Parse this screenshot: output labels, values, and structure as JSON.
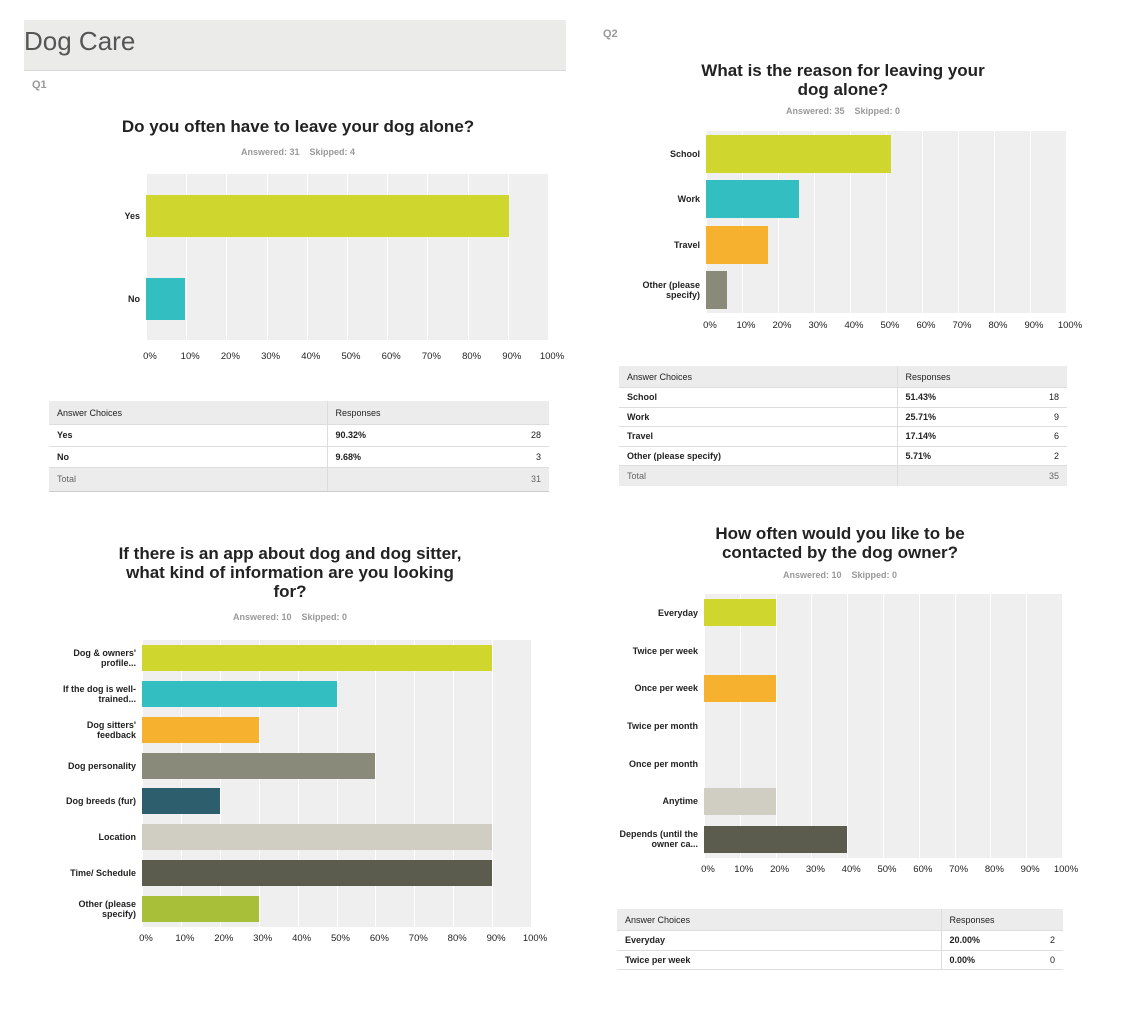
{
  "header": {
    "title": "Dog Care"
  },
  "chart_data": [
    {
      "type": "bar",
      "orientation": "horizontal",
      "label": "Q1",
      "title": "Do you often have to leave your dog alone?",
      "answered": "Answered: 31",
      "skipped": "Skipped: 4",
      "categories": [
        "Yes",
        "No"
      ],
      "values": [
        90.32,
        9.68
      ],
      "colors": [
        "#cfd62d",
        "#33bec1"
      ],
      "xlim": [
        0,
        100
      ],
      "xticks": [
        {
          "value": 0,
          "label": "0%"
        },
        {
          "value": 10,
          "label": "10%"
        },
        {
          "value": 20,
          "label": "20%"
        },
        {
          "value": 30,
          "label": "30%"
        },
        {
          "value": 40,
          "label": "40%"
        },
        {
          "value": 50,
          "label": "50%"
        },
        {
          "value": 60,
          "label": "60%"
        },
        {
          "value": 70,
          "label": "70%"
        },
        {
          "value": 80,
          "label": "80%"
        },
        {
          "value": 90,
          "label": "90%"
        },
        {
          "value": 100,
          "label": "100%"
        }
      ],
      "grid": true
    },
    {
      "type": "bar",
      "orientation": "horizontal",
      "label": "Q2",
      "title": "What is the reason for leaving your dog alone?",
      "answered": "Answered: 35",
      "skipped": "Skipped: 0",
      "categories": [
        "School",
        "Work",
        "Travel",
        "Other (please specify)"
      ],
      "values": [
        51.43,
        25.71,
        17.14,
        5.71
      ],
      "colors": [
        "#cfd62d",
        "#33bec1",
        "#f6b12f",
        "#8a8a7b"
      ],
      "xlim": [
        0,
        100
      ],
      "xticks": [
        {
          "value": 0,
          "label": "0%"
        },
        {
          "value": 10,
          "label": "10%"
        },
        {
          "value": 20,
          "label": "20%"
        },
        {
          "value": 30,
          "label": "30%"
        },
        {
          "value": 40,
          "label": "40%"
        },
        {
          "value": 50,
          "label": "50%"
        },
        {
          "value": 60,
          "label": "60%"
        },
        {
          "value": 70,
          "label": "70%"
        },
        {
          "value": 80,
          "label": "80%"
        },
        {
          "value": 90,
          "label": "90%"
        },
        {
          "value": 100,
          "label": "100%"
        }
      ],
      "grid": true
    },
    {
      "type": "bar",
      "orientation": "horizontal",
      "title": "If there is an app about dog and dog sitter, what kind of information are you looking for?",
      "answered": "Answered: 10",
      "skipped": "Skipped: 0",
      "categories": [
        "Dog & owners' profile...",
        "If the dog is well-trained...",
        "Dog sitters' feedback",
        "Dog personality",
        "Dog breeds (fur)",
        "Location",
        "Time/ Schedule",
        "Other (please specify)"
      ],
      "values": [
        90,
        50,
        30,
        60,
        20,
        90,
        90,
        30
      ],
      "colors": [
        "#cfd62d",
        "#33bec1",
        "#f6b12f",
        "#8a8a7b",
        "#2d5e6e",
        "#d0cec2",
        "#5b5b4e",
        "#a8bf3a"
      ],
      "xlim": [
        0,
        100
      ],
      "xticks": [
        {
          "value": 0,
          "label": "0%"
        },
        {
          "value": 10,
          "label": "10%"
        },
        {
          "value": 20,
          "label": "20%"
        },
        {
          "value": 30,
          "label": "30%"
        },
        {
          "value": 40,
          "label": "40%"
        },
        {
          "value": 50,
          "label": "50%"
        },
        {
          "value": 60,
          "label": "60%"
        },
        {
          "value": 70,
          "label": "70%"
        },
        {
          "value": 80,
          "label": "80%"
        },
        {
          "value": 90,
          "label": "90%"
        },
        {
          "value": 100,
          "label": "100%"
        }
      ],
      "grid": true
    },
    {
      "type": "bar",
      "orientation": "horizontal",
      "title": "How often would you like to be contacted by the dog owner?",
      "answered": "Answered: 10",
      "skipped": "Skipped: 0",
      "categories": [
        "Everyday",
        "Twice per week",
        "Once per week",
        "Twice per month",
        "Once per month",
        "Anytime",
        "Depends (until the owner ca..."
      ],
      "values": [
        20,
        0,
        20,
        0,
        0,
        20,
        40
      ],
      "colors": [
        "#cfd62d",
        "#33bec1",
        "#f6b12f",
        "#8a8a7b",
        "#2d5e6e",
        "#d0cec2",
        "#5b5b4e"
      ],
      "xlim": [
        0,
        100
      ],
      "xticks": [
        {
          "value": 0,
          "label": "0%"
        },
        {
          "value": 10,
          "label": "10%"
        },
        {
          "value": 20,
          "label": "20%"
        },
        {
          "value": 30,
          "label": "30%"
        },
        {
          "value": 40,
          "label": "40%"
        },
        {
          "value": 50,
          "label": "50%"
        },
        {
          "value": 60,
          "label": "60%"
        },
        {
          "value": 70,
          "label": "70%"
        },
        {
          "value": 80,
          "label": "80%"
        },
        {
          "value": 90,
          "label": "90%"
        },
        {
          "value": 100,
          "label": "100%"
        }
      ],
      "grid": true
    }
  ],
  "tables": [
    {
      "columns": [
        "Answer Choices",
        "Responses"
      ],
      "rows": [
        [
          "Yes",
          "90.32%",
          "28"
        ],
        [
          "No",
          "9.68%",
          "3"
        ]
      ],
      "total": [
        "Total",
        "31"
      ]
    },
    {
      "columns": [
        "Answer Choices",
        "Responses"
      ],
      "rows": [
        [
          "School",
          "51.43%",
          "18"
        ],
        [
          "Work",
          "25.71%",
          "9"
        ],
        [
          "Travel",
          "17.14%",
          "6"
        ],
        [
          "Other (please specify)",
          "5.71%",
          "2"
        ]
      ],
      "total": [
        "Total",
        "35"
      ]
    },
    {
      "columns": [
        "Answer Choices",
        "Responses"
      ],
      "rows": [
        [
          "Everyday",
          "20.00%",
          "2"
        ],
        [
          "Twice per week",
          "0.00%",
          "0"
        ]
      ]
    }
  ]
}
